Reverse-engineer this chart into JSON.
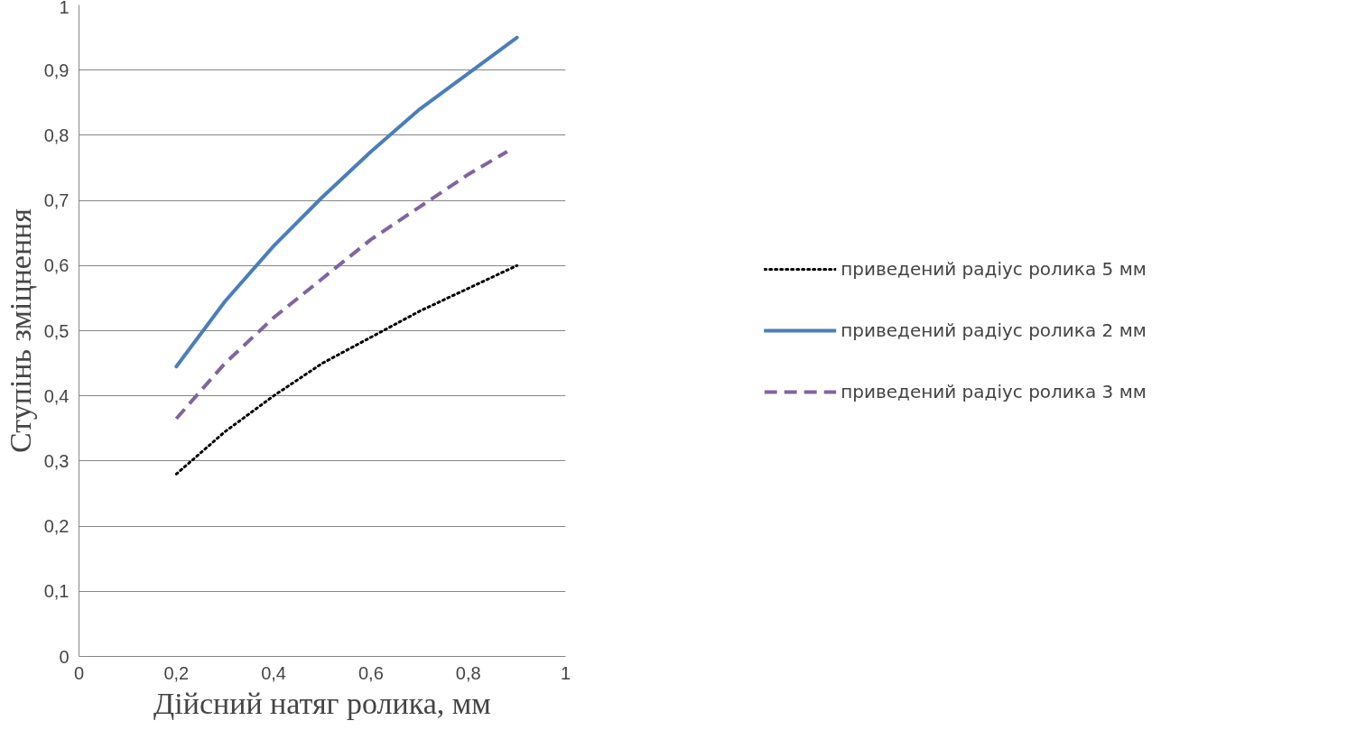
{
  "chart_data": {
    "type": "line",
    "xlabel": "Дійсний натяг ролика, мм",
    "ylabel": "Ступінь зміцнення",
    "xlim": [
      0,
      1
    ],
    "xticks": [
      {
        "value": 0,
        "label": "0"
      },
      {
        "value": 0.2,
        "label": "0,2"
      },
      {
        "value": 0.4,
        "label": "0,4"
      },
      {
        "value": 0.6,
        "label": "0,6"
      },
      {
        "value": 0.8,
        "label": "0,8"
      },
      {
        "value": 1,
        "label": "1"
      }
    ],
    "ylim": [
      0,
      1
    ],
    "yticks": [
      {
        "value": 0,
        "label": "0"
      },
      {
        "value": 0.1,
        "label": "0,1"
      },
      {
        "value": 0.2,
        "label": "0,2"
      },
      {
        "value": 0.3,
        "label": "0,3"
      },
      {
        "value": 0.4,
        "label": "0,4"
      },
      {
        "value": 0.5,
        "label": "0,5"
      },
      {
        "value": 0.6,
        "label": "0,6"
      },
      {
        "value": 0.7,
        "label": "0,7"
      },
      {
        "value": 0.8,
        "label": "0,8"
      },
      {
        "value": 0.9,
        "label": "0,9"
      },
      {
        "value": 1,
        "label": "1"
      }
    ],
    "grid": "y",
    "legend": "right",
    "series": [
      {
        "name": "приведений радіус ролика 5 мм",
        "color": "#000000",
        "line_style": "dotted",
        "x": [
          0.2,
          0.3,
          0.4,
          0.5,
          0.6,
          0.7,
          0.8,
          0.9
        ],
        "values": [
          0.28,
          0.345,
          0.4,
          0.45,
          0.49,
          0.53,
          0.565,
          0.6
        ]
      },
      {
        "name": "приведений радіус ролика 2 мм",
        "color": "#4a7ebb",
        "line_style": "solid",
        "x": [
          0.2,
          0.3,
          0.4,
          0.5,
          0.6,
          0.7,
          0.8,
          0.9
        ],
        "values": [
          0.445,
          0.545,
          0.63,
          0.705,
          0.775,
          0.84,
          0.895,
          0.95
        ]
      },
      {
        "name": "приведений радіус ролика 3 мм",
        "color": "#8064a2",
        "line_style": "dashed",
        "x": [
          0.2,
          0.3,
          0.4,
          0.5,
          0.6,
          0.7,
          0.8,
          0.88
        ],
        "values": [
          0.365,
          0.45,
          0.52,
          0.58,
          0.64,
          0.69,
          0.74,
          0.775
        ]
      }
    ]
  }
}
